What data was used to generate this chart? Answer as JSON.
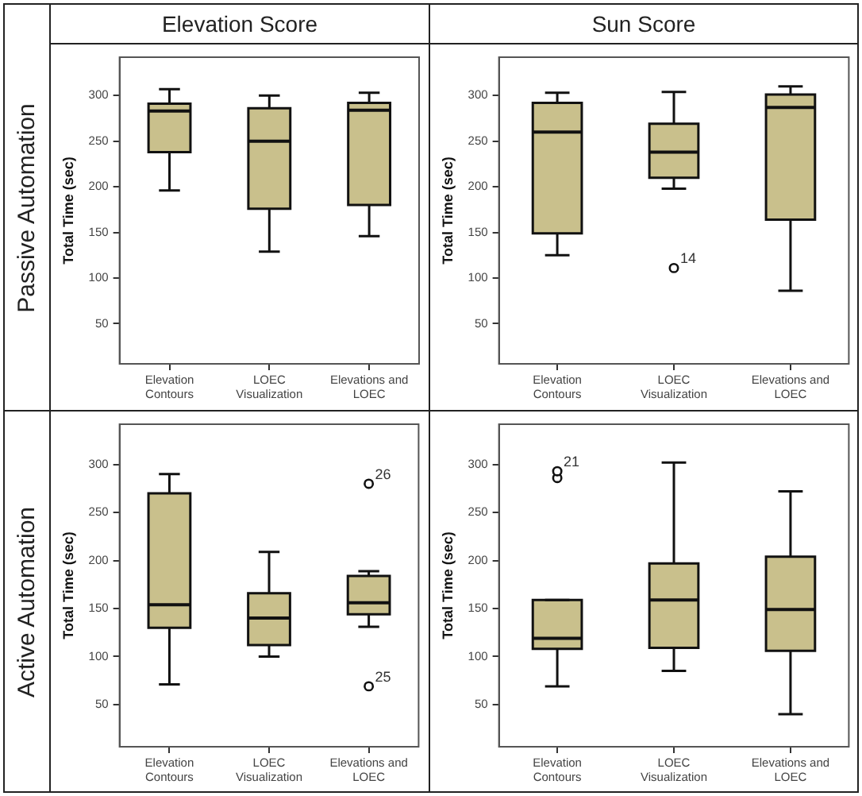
{
  "chart_data": [
    {
      "type": "box",
      "title": "Elevation Score",
      "subtitle": "Passive Automation",
      "ylabel": "Total Time (sec)",
      "categories": [
        "Elevation Contours",
        "LOEC Visualization",
        "Elevations and LOEC"
      ],
      "ylim": [
        6,
        342
      ],
      "yticks": [
        50,
        100,
        150,
        200,
        250,
        300
      ],
      "series": [
        {
          "color": "#c9c08c",
          "boxes": [
            {
              "low": 196,
              "q1": 238,
              "median": 283,
              "q3": 291,
              "high": 307
            },
            {
              "low": 129,
              "q1": 176,
              "median": 250,
              "q3": 286,
              "high": 300
            },
            {
              "low": 146,
              "q1": 180,
              "median": 284,
              "q3": 292,
              "high": 303
            }
          ]
        }
      ]
    },
    {
      "type": "box",
      "title": "Sun Score",
      "ylabel": "Total Time (sec)",
      "categories": [
        "Elevation Contours",
        "LOEC Visualization",
        "Elevations and LOEC"
      ],
      "ylim": [
        6,
        342
      ],
      "yticks": [
        50,
        100,
        150,
        200,
        250,
        300
      ],
      "series": [
        {
          "color": "#c9c08c",
          "boxes": [
            {
              "low": 125,
              "q1": 149,
              "median": 260,
              "q3": 292,
              "high": 303
            },
            {
              "low": 198,
              "q1": 210,
              "median": 238,
              "q3": 269,
              "high": 304,
              "outliers": [
                111
              ]
            },
            {
              "low": 86,
              "q1": 164,
              "median": 287,
              "q3": 301,
              "high": 310
            }
          ]
        }
      ],
      "annotations": [
        "14"
      ]
    },
    {
      "type": "box",
      "subtitle": "Active Automation",
      "ylabel": "Total Time (sec)",
      "categories": [
        "Elevation Contours",
        "LOEC Visualization",
        "Elevations and LOEC"
      ],
      "ylim": [
        6,
        342
      ],
      "yticks": [
        50,
        100,
        150,
        200,
        250,
        300
      ],
      "series": [
        {
          "color": "#c9c08c",
          "boxes": [
            {
              "low": 71,
              "q1": 130,
              "median": 154,
              "q3": 270,
              "high": 290
            },
            {
              "low": 100,
              "q1": 112,
              "median": 140,
              "q3": 166,
              "high": 209
            },
            {
              "low": 131,
              "q1": 144,
              "median": 156,
              "q3": 184,
              "high": 189,
              "outliers": [
                280,
                69
              ]
            }
          ]
        }
      ],
      "annotations": [
        "26",
        "25"
      ]
    },
    {
      "type": "box",
      "ylabel": "Total Time (sec)",
      "categories": [
        "Elevation Contours",
        "LOEC Visualization",
        "Elevations and LOEC"
      ],
      "ylim": [
        6,
        342
      ],
      "yticks": [
        50,
        100,
        150,
        200,
        250,
        300
      ],
      "series": [
        {
          "color": "#c9c08c",
          "boxes": [
            {
              "low": 69,
              "q1": 108,
              "median": 119,
              "q3": 159,
              "high": 159,
              "outliers": [
                293,
                286
              ]
            },
            {
              "low": 85,
              "q1": 109,
              "median": 159,
              "q3": 197,
              "high": 302
            },
            {
              "low": 40,
              "q1": 106,
              "median": 149,
              "q3": 204,
              "high": 272
            }
          ]
        }
      ],
      "annotations": [
        "21"
      ]
    }
  ]
}
